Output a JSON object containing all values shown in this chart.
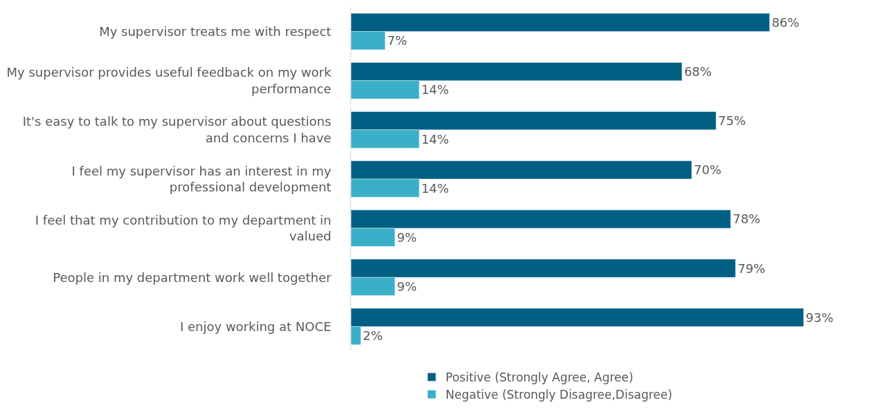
{
  "chart_data": {
    "type": "bar",
    "orientation": "horizontal",
    "categories": [
      "My supervisor treats me with respect",
      "My supervisor provides useful feedback on my work performance",
      "It's easy to talk to my supervisor about questions and concerns I have",
      "I feel my supervisor has an interest in my professional development",
      "I feel that my contribution to my department in valued",
      "People in my department work well together",
      "I enjoy working at NOCE"
    ],
    "series": [
      {
        "name": "Positive (Strongly Agree, Agree)",
        "color": "#005f83",
        "values": [
          86,
          68,
          75,
          70,
          78,
          79,
          93
        ],
        "value_labels": [
          "86%",
          "68%",
          "75%",
          "70%",
          "78%",
          "79%",
          "93%"
        ]
      },
      {
        "name": "Negative (Strongly Disagree,Disagree)",
        "color": "#3ab0c8",
        "values": [
          7,
          14,
          14,
          14,
          9,
          9,
          2
        ],
        "value_labels": [
          "7%",
          "14%",
          "14%",
          "14%",
          "9%",
          "9%",
          "2%"
        ]
      }
    ],
    "legend": "bottom"
  }
}
